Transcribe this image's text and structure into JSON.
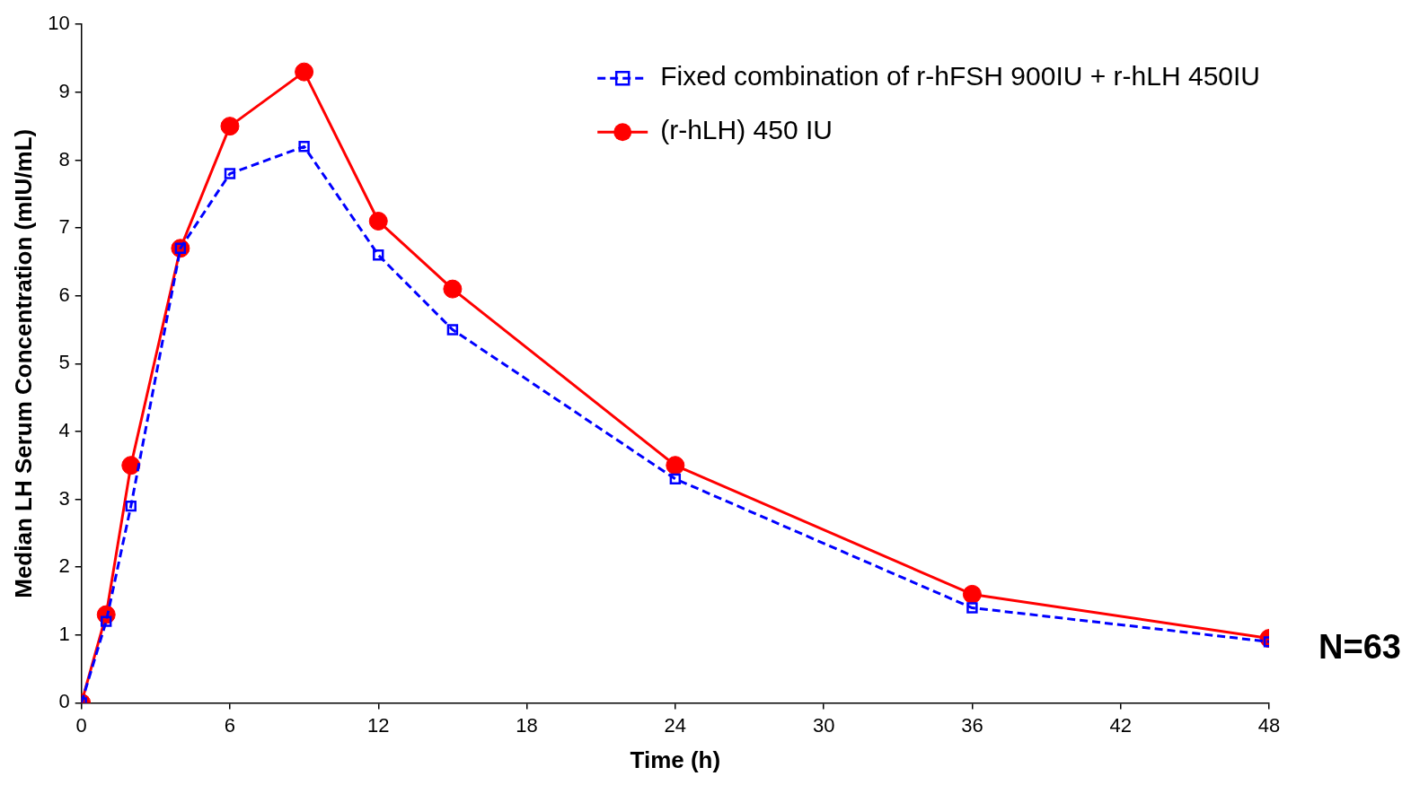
{
  "chart_data": {
    "type": "line",
    "xlabel": "Time (h)",
    "ylabel": "Median LH Serum Concentration (mIU/mL)",
    "x": [
      0,
      1,
      2,
      4,
      6,
      9,
      12,
      15,
      24,
      36,
      48
    ],
    "series": [
      {
        "name": "Fixed combination of r-hFSH 900IU + r-hLH 450IU",
        "color": "#0000ff",
        "marker": "square",
        "line_style": "dashed",
        "values": [
          0,
          1.2,
          2.9,
          6.7,
          7.8,
          8.2,
          6.6,
          5.5,
          3.3,
          1.4,
          0.9
        ]
      },
      {
        "name": "(r-hLH) 450 IU",
        "color": "#ff0000",
        "marker": "circle",
        "line_style": "solid",
        "values": [
          0,
          1.3,
          3.5,
          6.7,
          8.5,
          9.3,
          7.1,
          6.1,
          3.5,
          1.6,
          0.95
        ]
      }
    ],
    "xlim": [
      0,
      48
    ],
    "xticks": [
      0,
      6,
      12,
      18,
      24,
      30,
      36,
      42,
      48
    ],
    "ylim": [
      0,
      10
    ],
    "yticks": [
      0,
      1,
      2,
      3,
      4,
      5,
      6,
      7,
      8,
      9,
      10
    ],
    "grid": false,
    "legend": "top right",
    "annotations": [
      "N=63"
    ]
  }
}
